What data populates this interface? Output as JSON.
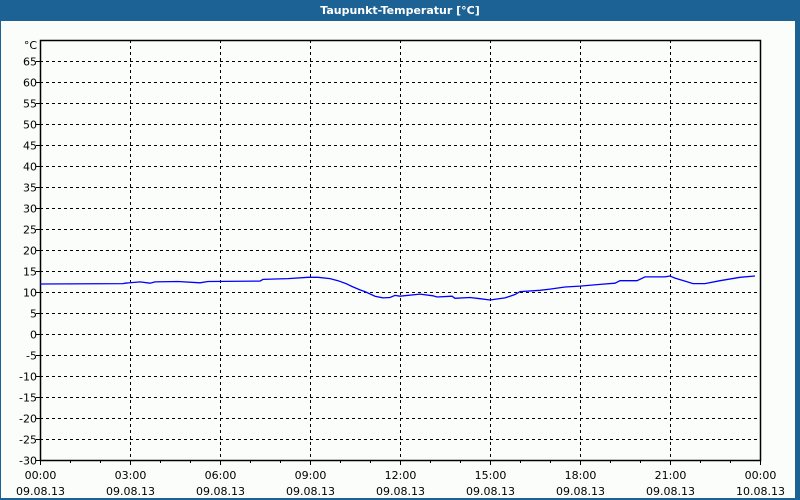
{
  "window": {
    "title": "Taupunkt-Temperatur [°C]",
    "accent_color": "#1c6294"
  },
  "chart_data": {
    "type": "line",
    "title": "Taupunkt-Temperatur [°C]",
    "ylabel": "°C",
    "ylim": [
      -30,
      70
    ],
    "yticks": [
      65,
      60,
      55,
      50,
      45,
      40,
      35,
      30,
      25,
      20,
      15,
      10,
      5,
      0,
      -5,
      -10,
      -15,
      -20,
      -25,
      -30
    ],
    "xlim": [
      "09.08.13 00:00",
      "10.08.13 00:00"
    ],
    "xticks": [
      {
        "time": "00:00",
        "date": "09.08.13"
      },
      {
        "time": "03:00",
        "date": "09.08.13"
      },
      {
        "time": "06:00",
        "date": "09.08.13"
      },
      {
        "time": "09:00",
        "date": "09.08.13"
      },
      {
        "time": "12:00",
        "date": "09.08.13"
      },
      {
        "time": "15:00",
        "date": "09.08.13"
      },
      {
        "time": "18:00",
        "date": "09.08.13"
      },
      {
        "time": "21:00",
        "date": "09.08.13"
      },
      {
        "time": "00:00",
        "date": "10.08.13"
      }
    ],
    "grid": true,
    "series": [
      {
        "color": "#0000ff",
        "x": [
          "00:00",
          "02:46",
          "02:50",
          "03:20",
          "03:40",
          "03:50",
          "04:36",
          "05:20",
          "05:36",
          "07:20",
          "07:26",
          "08:16",
          "08:56",
          "09:16",
          "09:40",
          "09:56",
          "10:12",
          "10:24",
          "10:40",
          "10:50",
          "11:10",
          "11:26",
          "11:40",
          "11:50",
          "12:00",
          "12:40",
          "13:06",
          "13:14",
          "13:44",
          "13:50",
          "14:20",
          "14:40",
          "15:00",
          "15:30",
          "15:50",
          "16:00",
          "16:40",
          "17:00",
          "17:30",
          "18:00",
          "18:40",
          "19:10",
          "19:20",
          "19:54",
          "20:10",
          "20:50",
          "21:00",
          "21:10",
          "21:30",
          "21:46",
          "22:10",
          "22:40",
          "23:20",
          "23:50"
        ],
        "y": [
          11.9,
          12.0,
          12.1,
          12.4,
          12.1,
          12.4,
          12.5,
          12.2,
          12.5,
          12.6,
          13.0,
          13.2,
          13.5,
          13.5,
          13.2,
          12.7,
          12.0,
          11.3,
          10.5,
          10.1,
          9.0,
          8.6,
          8.7,
          9.2,
          9.0,
          9.5,
          9.1,
          8.8,
          9.0,
          8.5,
          8.7,
          8.4,
          8.1,
          8.6,
          9.4,
          10.1,
          10.4,
          10.7,
          11.2,
          11.4,
          11.8,
          12.1,
          12.7,
          12.7,
          13.6,
          13.6,
          13.8,
          13.3,
          12.6,
          12.0,
          12.0,
          12.7,
          13.5,
          13.8
        ]
      }
    ]
  }
}
